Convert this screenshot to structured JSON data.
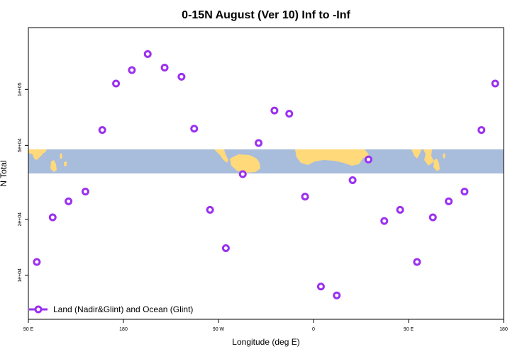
{
  "chart_data": {
    "type": "scatter",
    "title": "0-15N August (Ver 10)   Inf to -Inf",
    "xlabel": "Longitude (deg E)",
    "ylabel": "N Total",
    "x_ticks": [
      {
        "value": 90,
        "label": "90 E"
      },
      {
        "value": 180,
        "label": "180"
      },
      {
        "value": 270,
        "label": "90 W"
      },
      {
        "value": 360,
        "label": "0"
      },
      {
        "value": 450,
        "label": "90 E"
      },
      {
        "value": 540,
        "label": "180"
      }
    ],
    "y_ticks": [
      {
        "value": 10000,
        "label": "1e+04"
      },
      {
        "value": 20000,
        "label": "2e+04"
      },
      {
        "value": 50000,
        "label": "5e+04"
      },
      {
        "value": 100000,
        "label": "1e+05"
      }
    ],
    "x_range": [
      90,
      540
    ],
    "y_range": [
      5800,
      215000
    ],
    "y_scale": "log",
    "grid": false,
    "legend_position": "bottom-left",
    "series": [
      {
        "name": "Land (Nadir&Glint) and Ocean (Glint)",
        "color": "#9b30f0",
        "marker": "open-circle",
        "points": [
          [
            98,
            11800
          ],
          [
            113,
            20500
          ],
          [
            128,
            25000
          ],
          [
            144,
            28200
          ],
          [
            160,
            60500
          ],
          [
            173,
            107500
          ],
          [
            188,
            127000
          ],
          [
            203,
            155000
          ],
          [
            219,
            131000
          ],
          [
            235,
            117000
          ],
          [
            247,
            61500
          ],
          [
            262,
            22500
          ],
          [
            277,
            14000
          ],
          [
            293,
            35000
          ],
          [
            308,
            51500
          ],
          [
            323,
            77000
          ],
          [
            337,
            74000
          ],
          [
            352,
            26500
          ],
          [
            367,
            8700
          ],
          [
            382,
            7800
          ],
          [
            397,
            32500
          ],
          [
            412,
            42000
          ],
          [
            427,
            19600
          ],
          [
            442,
            22500
          ],
          [
            458,
            11800
          ],
          [
            473,
            20500
          ],
          [
            488,
            25000
          ],
          [
            503,
            28200
          ],
          [
            519,
            60500
          ],
          [
            532,
            107500
          ]
        ]
      }
    ],
    "background_map": {
      "latitudes": "0-15N",
      "land_color": "#ffd97a",
      "ocean_color": "#a8bcdc"
    }
  }
}
